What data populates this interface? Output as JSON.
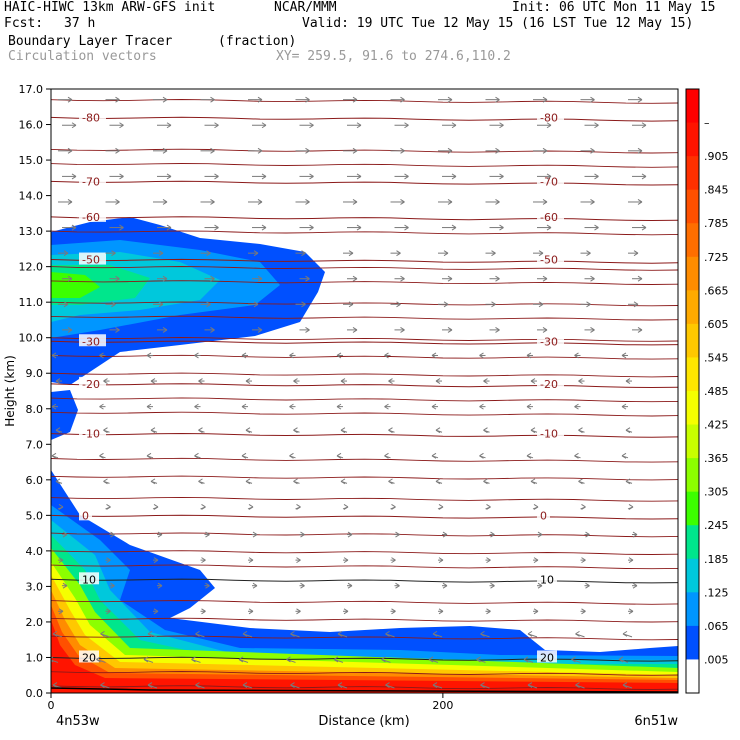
{
  "header": {
    "model": "HAIC-HIWC 13km ARW-GFS init",
    "org": "NCAR/MMM",
    "init": "Init: 06 UTC Mon 11 May 15",
    "fcst_label": "Fcst:",
    "fcst_value": "37 h",
    "valid": "Valid: 19 UTC Tue 12 May 15 (16 LST Tue 12 May 15)",
    "field": "Boundary Layer Tracer",
    "units": "(fraction)",
    "overlay": "Circulation vectors",
    "xy": "XY= 259.5, 91.6 to 274.6,110.2"
  },
  "chart_data": {
    "type": "heatmap",
    "ylabel": "Height (km)",
    "xlabel": "Distance (km)",
    "ylim": [
      0,
      17
    ],
    "xlim": [
      0,
      320
    ],
    "yticks": [
      "0.0",
      "1.0",
      "2.0",
      "3.0",
      "4.0",
      "5.0",
      "6.0",
      "7.0",
      "8.0",
      "9.0",
      "10.0",
      "11.0",
      "12.0",
      "13.0",
      "14.0",
      "15.0",
      "16.0",
      "17.0"
    ],
    "xticks": [
      "0",
      "200"
    ],
    "left_endpoint": "4n53w",
    "right_endpoint": "6n51w",
    "colorbar": {
      "labels": [
        "–",
        ".905",
        ".845",
        ".785",
        ".725",
        ".665",
        ".605",
        ".545",
        ".485",
        ".425",
        ".365",
        ".305",
        ".245",
        ".185",
        ".125",
        ".065",
        ".005"
      ],
      "colors": [
        "#ff0000",
        "#ff1400",
        "#ff3000",
        "#ff5000",
        "#ff6e00",
        "#ff8c00",
        "#ffaa00",
        "#ffc800",
        "#ffe600",
        "#f5ff00",
        "#c8ff00",
        "#8cff00",
        "#3cff00",
        "#00e68c",
        "#00c8dc",
        "#0096ff",
        "#0050ff",
        "#ffffff"
      ]
    },
    "temperature_contours": [
      {
        "label": "-80",
        "y": 16.2
      },
      {
        "label": "-70",
        "y": 14.4
      },
      {
        "label": "-60",
        "y": 13.4
      },
      {
        "label": "-50",
        "y": 12.2
      },
      {
        "label": "-30",
        "y": 9.9
      },
      {
        "label": "-20",
        "y": 8.7
      },
      {
        "label": "-10",
        "y": 7.3
      },
      {
        "label": "0",
        "y": 5.0
      },
      {
        "label": "10",
        "y": 3.2
      },
      {
        "label": "20",
        "y": 1.0
      }
    ],
    "extra_contours": [
      16.7,
      15.3,
      14.9,
      13.0,
      12.0,
      11.6,
      11.0,
      10.6,
      10.0,
      9.5,
      9.0,
      8.3,
      7.9,
      6.6,
      6.1,
      5.5,
      4.5,
      4.0,
      3.6,
      2.6,
      2.1,
      1.6,
      0.6,
      0.2
    ]
  }
}
